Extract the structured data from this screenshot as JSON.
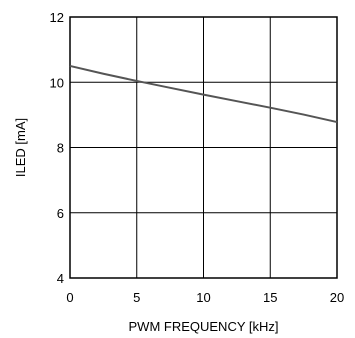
{
  "chart_data": {
    "type": "line",
    "title": "",
    "xlabel": "PWM FREQUENCY [kHz]",
    "ylabel": "ILED [mA]",
    "xlim": [
      0,
      20
    ],
    "ylim": [
      4,
      12
    ],
    "xticks": [
      0,
      5,
      10,
      15,
      20
    ],
    "yticks": [
      4,
      6,
      8,
      10,
      12
    ],
    "xtick_labels": [
      "0",
      "5",
      "10",
      "15",
      "20"
    ],
    "ytick_labels": [
      "4",
      "6",
      "8",
      "10",
      "12"
    ],
    "grid": true,
    "legend": "none",
    "series": [
      {
        "color": "#555555",
        "x": [
          0,
          2.5,
          5,
          7.5,
          10,
          12.5,
          15,
          17.5,
          20
        ],
        "y": [
          10.5,
          10.26,
          10.04,
          9.83,
          9.62,
          9.42,
          9.22,
          9.01,
          8.78
        ]
      }
    ]
  }
}
